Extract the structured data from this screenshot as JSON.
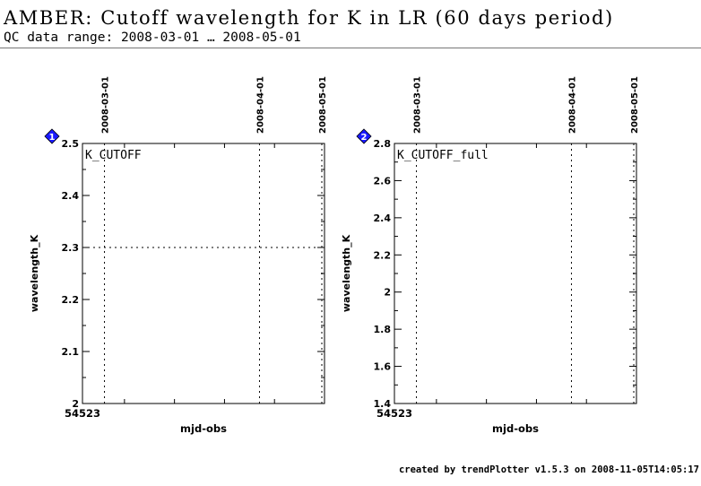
{
  "header": {
    "title": "AMBER: Cutoff wavelength for K in LR (60 days period)",
    "subtitle": "QC data range: 2008-03-01 … 2008-05-01"
  },
  "footer": {
    "credit": "created by trendPlotter v1.5.3 on 2008-11-05T14:05:17"
  },
  "colors": {
    "badge": "#1a1aff"
  },
  "chart_data": [
    {
      "type": "scatter",
      "panel_number": "1",
      "label": "K_CUTOFF",
      "xlabel": "mjd-obs",
      "ylabel": "wavelength_K",
      "x_start_label": "54523",
      "xlim": [
        54521.6,
        54570.0
      ],
      "ylim": [
        2.0,
        2.5
      ],
      "yticks": [
        "2",
        "2.1",
        "2.2",
        "2.3",
        "2.4",
        "2.5"
      ],
      "date_ticks": [
        {
          "label": "2008-03-01",
          "mjd": 54526
        },
        {
          "label": "2008-04-01",
          "mjd": 54557
        },
        {
          "label": "2008-05-01",
          "mjd": 54587
        }
      ],
      "reference_lines_y": [
        2.3,
        2.5
      ],
      "series": []
    },
    {
      "type": "scatter",
      "panel_number": "2",
      "label": "K_CUTOFF_full",
      "xlabel": "mjd-obs",
      "ylabel": "wavelength_K",
      "x_start_label": "54523",
      "xlim": [
        54521.6,
        54570.0
      ],
      "ylim": [
        1.4,
        2.8
      ],
      "yticks": [
        "1.4",
        "1.6",
        "1.8",
        "2",
        "2.2",
        "2.4",
        "2.6",
        "2.8"
      ],
      "date_ticks": [
        {
          "label": "2008-03-01",
          "mjd": 54526
        },
        {
          "label": "2008-04-01",
          "mjd": 54557
        },
        {
          "label": "2008-05-01",
          "mjd": 54587
        }
      ],
      "reference_lines_y": [],
      "series": []
    }
  ]
}
